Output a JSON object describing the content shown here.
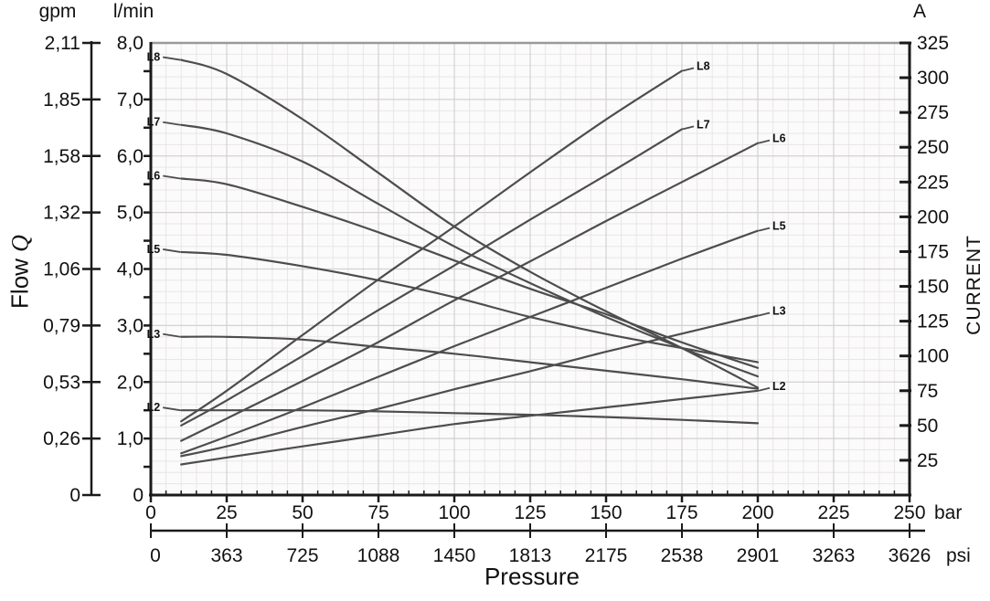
{
  "units": {
    "flow_secondary": "gpm",
    "flow_primary": "l/min",
    "current": "A",
    "pressure_primary": "bar",
    "pressure_secondary": "psi"
  },
  "axis_titles": {
    "flow_word": "Flow",
    "flow_symbol": "Q",
    "current": "CURRENT",
    "pressure": "Pressure"
  },
  "colors": {
    "curve": "#4d4d4d",
    "grid_minor": "#eae5e5",
    "grid_major": "#d6d0d0",
    "axis": "#1a1a1a",
    "top_border": "#999999",
    "plot_bg": "#fbfbfb",
    "text": "#111111"
  },
  "chart_data": {
    "type": "line",
    "title": "",
    "x_axis": {
      "label": "Pressure",
      "unit": "bar",
      "range": [
        0,
        250
      ],
      "ticks_bar": [
        0,
        25,
        50,
        75,
        100,
        125,
        150,
        175,
        200,
        225,
        250
      ],
      "secondary_unit": "psi",
      "ticks_psi": [
        "0",
        "363",
        "725",
        "1088",
        "1450",
        "1813",
        "2175",
        "2538",
        "2901",
        "3263",
        "3626"
      ]
    },
    "y_left_axis": {
      "label": "Flow Q",
      "unit": "l/min",
      "range": [
        0,
        8
      ],
      "tick_values": [
        8,
        7,
        6,
        5,
        4,
        3,
        2,
        1,
        0
      ],
      "tick_labels_lmin": [
        "8,0",
        "7,0",
        "6,0",
        "5,0",
        "4,0",
        "3,0",
        "2,0",
        "1,0",
        "0"
      ],
      "secondary_unit": "gpm",
      "tick_labels_gpm": [
        "2,11",
        "1,85",
        "1,58",
        "1,32",
        "1,06",
        "0,79",
        "0,53",
        "0,26",
        "0"
      ]
    },
    "y_right_axis": {
      "label": "CURRENT",
      "unit": "A",
      "range": [
        0,
        325
      ],
      "ticks": [
        325,
        300,
        275,
        250,
        225,
        200,
        175,
        150,
        125,
        100,
        75,
        50,
        25
      ]
    },
    "grid": {
      "minor_x_bar": 5,
      "major_x_bar": 25,
      "minor_y_lmin": 0.2,
      "major_y_lmin": 1,
      "grid_on": true
    },
    "legend_position": "curve-labels",
    "series_flow": [
      {
        "name": "L8",
        "x": [
          10,
          25,
          50,
          75,
          100,
          125,
          150,
          175,
          200
        ],
        "lmin": [
          7.7,
          7.45,
          6.65,
          5.7,
          4.75,
          3.95,
          3.25,
          2.6,
          1.9
        ]
      },
      {
        "name": "L7",
        "x": [
          10,
          25,
          50,
          75,
          100,
          125,
          150,
          175,
          200
        ],
        "lmin": [
          6.55,
          6.4,
          5.9,
          5.15,
          4.4,
          3.75,
          3.15,
          2.6,
          2.1
        ]
      },
      {
        "name": "L6",
        "x": [
          10,
          25,
          50,
          75,
          100,
          125,
          150,
          175,
          200
        ],
        "lmin": [
          5.6,
          5.5,
          5.1,
          4.65,
          4.15,
          3.65,
          3.2,
          2.7,
          2.25
        ]
      },
      {
        "name": "L5",
        "x": [
          10,
          25,
          50,
          75,
          100,
          125,
          150,
          175,
          200
        ],
        "lmin": [
          4.3,
          4.25,
          4.05,
          3.8,
          3.5,
          3.15,
          2.85,
          2.6,
          2.35
        ]
      },
      {
        "name": "L3",
        "x": [
          10,
          25,
          50,
          75,
          100,
          125,
          150,
          175,
          200
        ],
        "lmin": [
          2.8,
          2.8,
          2.75,
          2.62,
          2.5,
          2.35,
          2.2,
          2.05,
          1.88
        ]
      },
      {
        "name": "L2",
        "x": [
          10,
          25,
          50,
          75,
          100,
          125,
          150,
          175,
          200
        ],
        "lmin": [
          1.5,
          1.5,
          1.5,
          1.48,
          1.45,
          1.42,
          1.38,
          1.33,
          1.27
        ]
      }
    ],
    "series_current": [
      {
        "name": "L8",
        "x": [
          10,
          25,
          50,
          75,
          100,
          125,
          150,
          175
        ],
        "amps": [
          53,
          75,
          115,
          155,
          193,
          232,
          270,
          305
        ]
      },
      {
        "name": "L7",
        "x": [
          10,
          25,
          50,
          75,
          100,
          125,
          150,
          175
        ],
        "amps": [
          50,
          68,
          100,
          133,
          165,
          198,
          230,
          263
        ]
      },
      {
        "name": "L6",
        "x": [
          10,
          25,
          50,
          75,
          100,
          125,
          150,
          175,
          200
        ],
        "amps": [
          39,
          55,
          82,
          110,
          140,
          168,
          197,
          225,
          253
        ]
      },
      {
        "name": "L5",
        "x": [
          10,
          25,
          50,
          75,
          100,
          125,
          150,
          175,
          200
        ],
        "amps": [
          30,
          42,
          63,
          85,
          107,
          128,
          149,
          170,
          190
        ]
      },
      {
        "name": "L3",
        "x": [
          10,
          25,
          50,
          75,
          100,
          125,
          150,
          175,
          200
        ],
        "amps": [
          28,
          35,
          49,
          62,
          76,
          89,
          103,
          116,
          129
        ]
      },
      {
        "name": "L2",
        "x": [
          10,
          25,
          50,
          75,
          100,
          125,
          150,
          175,
          200
        ],
        "amps": [
          22,
          27,
          35,
          43,
          51,
          57,
          63,
          69,
          75
        ]
      }
    ]
  }
}
